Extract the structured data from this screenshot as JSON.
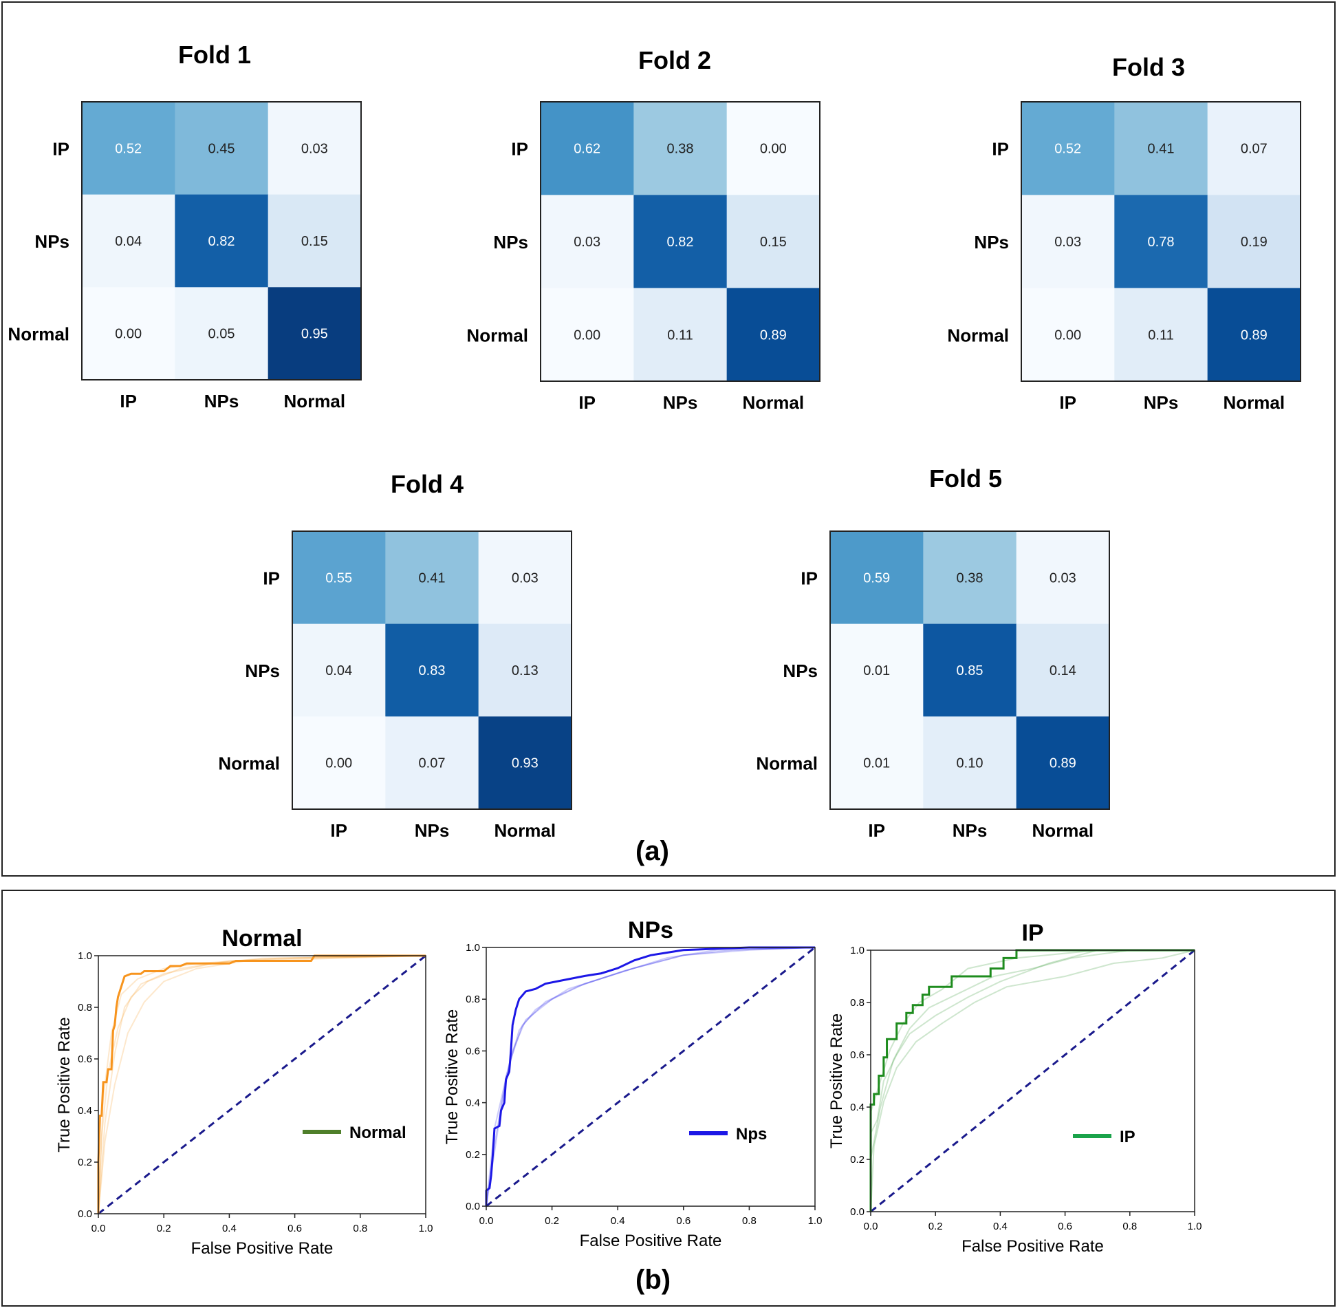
{
  "panel_a": {
    "label": "(a)"
  },
  "panel_b": {
    "label": "(b)"
  },
  "colors": {
    "orange": "#f7941d",
    "blue": "#1c17e6",
    "green": "#1e8c1e",
    "diag": "#1a1a8c",
    "legend_normal": "#4f7f2a",
    "legend_nps": "#1c17e6",
    "legend_ip": "#1aa34a"
  },
  "chart_data": [
    {
      "type": "heatmap",
      "title": "Fold 1",
      "rows": [
        "IP",
        "NPs",
        "Normal"
      ],
      "cols": [
        "IP",
        "NPs",
        "Normal"
      ],
      "values": [
        [
          0.52,
          0.45,
          0.03
        ],
        [
          0.04,
          0.82,
          0.15
        ],
        [
          0.0,
          0.05,
          0.95
        ]
      ],
      "labels": [
        [
          "0.52",
          "0.45",
          "0.03"
        ],
        [
          "0.04",
          "0.82",
          "0.15"
        ],
        [
          "0.00",
          "0.05",
          "0.95"
        ]
      ]
    },
    {
      "type": "heatmap",
      "title": "Fold 2",
      "rows": [
        "IP",
        "NPs",
        "Normal"
      ],
      "cols": [
        "IP",
        "NPs",
        "Normal"
      ],
      "values": [
        [
          0.62,
          0.38,
          0.0
        ],
        [
          0.03,
          0.82,
          0.15
        ],
        [
          0.0,
          0.11,
          0.89
        ]
      ],
      "labels": [
        [
          "0.62",
          "0.38",
          "0.00"
        ],
        [
          "0.03",
          "0.82",
          "0.15"
        ],
        [
          "0.00",
          "0.11",
          "0.89"
        ]
      ]
    },
    {
      "type": "heatmap",
      "title": "Fold 3",
      "rows": [
        "IP",
        "NPs",
        "Normal"
      ],
      "cols": [
        "IP",
        "NPs",
        "Normal"
      ],
      "values": [
        [
          0.52,
          0.41,
          0.07
        ],
        [
          0.03,
          0.78,
          0.19
        ],
        [
          0.0,
          0.11,
          0.89
        ]
      ],
      "labels": [
        [
          "0.52",
          "0.41",
          "0.07"
        ],
        [
          "0.03",
          "0.78",
          "0.19"
        ],
        [
          "0.00",
          "0.11",
          "0.89"
        ]
      ]
    },
    {
      "type": "heatmap",
      "title": "Fold 4",
      "rows": [
        "IP",
        "NPs",
        "Normal"
      ],
      "cols": [
        "IP",
        "NPs",
        "Normal"
      ],
      "values": [
        [
          0.55,
          0.41,
          0.03
        ],
        [
          0.04,
          0.83,
          0.13
        ],
        [
          0.0,
          0.07,
          0.93
        ]
      ],
      "labels": [
        [
          "0.55",
          "0.41",
          "0.03"
        ],
        [
          "0.04",
          "0.83",
          "0.13"
        ],
        [
          "0.00",
          "0.07",
          "0.93"
        ]
      ]
    },
    {
      "type": "heatmap",
      "title": "Fold 5",
      "rows": [
        "IP",
        "NPs",
        "Normal"
      ],
      "cols": [
        "IP",
        "NPs",
        "Normal"
      ],
      "values": [
        [
          0.59,
          0.38,
          0.03
        ],
        [
          0.01,
          0.85,
          0.14
        ],
        [
          0.01,
          0.1,
          0.89
        ]
      ],
      "labels": [
        [
          "0.59",
          "0.38",
          "0.03"
        ],
        [
          "0.01",
          "0.85",
          "0.14"
        ],
        [
          "0.01",
          "0.10",
          "0.89"
        ]
      ]
    },
    {
      "type": "line",
      "title": "Normal",
      "xlabel": "False Positive Rate",
      "ylabel": "True Positive Rate",
      "xlim": [
        0,
        1
      ],
      "ylim": [
        0,
        1
      ],
      "ticks": [
        "0.0",
        "0.2",
        "0.4",
        "0.6",
        "0.8",
        "1.0"
      ],
      "legend": "Normal",
      "color_key": "orange",
      "legend_color_key": "legend_normal",
      "main": [
        [
          0,
          0
        ],
        [
          0,
          0.2
        ],
        [
          0.005,
          0.38
        ],
        [
          0.01,
          0.38
        ],
        [
          0.015,
          0.51
        ],
        [
          0.025,
          0.51
        ],
        [
          0.03,
          0.56
        ],
        [
          0.04,
          0.56
        ],
        [
          0.045,
          0.71
        ],
        [
          0.05,
          0.73
        ],
        [
          0.055,
          0.8
        ],
        [
          0.06,
          0.84
        ],
        [
          0.065,
          0.86
        ],
        [
          0.07,
          0.88
        ],
        [
          0.075,
          0.9
        ],
        [
          0.08,
          0.92
        ],
        [
          0.1,
          0.93
        ],
        [
          0.13,
          0.93
        ],
        [
          0.14,
          0.94
        ],
        [
          0.2,
          0.94
        ],
        [
          0.22,
          0.96
        ],
        [
          0.25,
          0.96
        ],
        [
          0.27,
          0.97
        ],
        [
          0.4,
          0.97
        ],
        [
          0.42,
          0.98
        ],
        [
          0.65,
          0.98
        ],
        [
          0.66,
          1.0
        ],
        [
          1,
          1
        ]
      ],
      "folds": [
        [
          [
            0,
            0
          ],
          [
            0.01,
            0.3
          ],
          [
            0.03,
            0.55
          ],
          [
            0.06,
            0.72
          ],
          [
            0.1,
            0.84
          ],
          [
            0.15,
            0.9
          ],
          [
            0.25,
            0.95
          ],
          [
            0.4,
            0.98
          ],
          [
            0.6,
            0.99
          ],
          [
            1,
            1
          ]
        ],
        [
          [
            0,
            0
          ],
          [
            0.02,
            0.35
          ],
          [
            0.05,
            0.62
          ],
          [
            0.08,
            0.8
          ],
          [
            0.13,
            0.89
          ],
          [
            0.2,
            0.93
          ],
          [
            0.35,
            0.97
          ],
          [
            0.5,
            0.99
          ],
          [
            1,
            1
          ]
        ],
        [
          [
            0,
            0
          ],
          [
            0.015,
            0.45
          ],
          [
            0.04,
            0.7
          ],
          [
            0.07,
            0.85
          ],
          [
            0.12,
            0.91
          ],
          [
            0.2,
            0.95
          ],
          [
            0.3,
            0.97
          ],
          [
            0.55,
            0.99
          ],
          [
            1,
            1
          ]
        ],
        [
          [
            0,
            0
          ],
          [
            0.02,
            0.28
          ],
          [
            0.05,
            0.5
          ],
          [
            0.09,
            0.7
          ],
          [
            0.14,
            0.82
          ],
          [
            0.2,
            0.9
          ],
          [
            0.3,
            0.95
          ],
          [
            0.45,
            0.98
          ],
          [
            1,
            1
          ]
        ]
      ]
    },
    {
      "type": "line",
      "title": "NPs",
      "xlabel": "False Positive Rate",
      "ylabel": "True Positive Rate",
      "xlim": [
        0,
        1
      ],
      "ylim": [
        0,
        1
      ],
      "ticks": [
        "0.0",
        "0.2",
        "0.4",
        "0.6",
        "0.8",
        "1.0"
      ],
      "legend": "Nps",
      "color_key": "blue",
      "legend_color_key": "legend_nps",
      "main": [
        [
          0,
          0
        ],
        [
          0,
          0.06
        ],
        [
          0.01,
          0.07
        ],
        [
          0.015,
          0.12
        ],
        [
          0.02,
          0.2
        ],
        [
          0.025,
          0.3
        ],
        [
          0.04,
          0.31
        ],
        [
          0.045,
          0.37
        ],
        [
          0.055,
          0.4
        ],
        [
          0.06,
          0.49
        ],
        [
          0.07,
          0.52
        ],
        [
          0.075,
          0.6
        ],
        [
          0.08,
          0.7
        ],
        [
          0.09,
          0.76
        ],
        [
          0.1,
          0.8
        ],
        [
          0.12,
          0.83
        ],
        [
          0.15,
          0.84
        ],
        [
          0.18,
          0.86
        ],
        [
          0.22,
          0.87
        ],
        [
          0.26,
          0.88
        ],
        [
          0.3,
          0.89
        ],
        [
          0.35,
          0.9
        ],
        [
          0.4,
          0.92
        ],
        [
          0.45,
          0.95
        ],
        [
          0.5,
          0.97
        ],
        [
          0.55,
          0.98
        ],
        [
          0.6,
          0.99
        ],
        [
          0.7,
          0.995
        ],
        [
          0.8,
          1.0
        ],
        [
          1,
          1
        ]
      ],
      "folds": [
        [
          [
            0,
            0
          ],
          [
            0.02,
            0.2
          ],
          [
            0.05,
            0.42
          ],
          [
            0.08,
            0.6
          ],
          [
            0.12,
            0.72
          ],
          [
            0.2,
            0.8
          ],
          [
            0.3,
            0.86
          ],
          [
            0.45,
            0.92
          ],
          [
            0.6,
            0.97
          ],
          [
            0.75,
            0.99
          ],
          [
            1,
            1
          ]
        ],
        [
          [
            0,
            0
          ],
          [
            0.03,
            0.25
          ],
          [
            0.06,
            0.5
          ],
          [
            0.1,
            0.68
          ],
          [
            0.15,
            0.76
          ],
          [
            0.25,
            0.84
          ],
          [
            0.4,
            0.9
          ],
          [
            0.55,
            0.96
          ],
          [
            0.7,
            0.99
          ],
          [
            1,
            1
          ]
        ],
        [
          [
            0,
            0
          ],
          [
            0.025,
            0.3
          ],
          [
            0.07,
            0.55
          ],
          [
            0.11,
            0.7
          ],
          [
            0.18,
            0.79
          ],
          [
            0.28,
            0.85
          ],
          [
            0.42,
            0.91
          ],
          [
            0.6,
            0.97
          ],
          [
            0.8,
            0.99
          ],
          [
            1,
            1
          ]
        ]
      ]
    },
    {
      "type": "line",
      "title": "IP",
      "xlabel": "False Positive Rate",
      "ylabel": "True Positive Rate",
      "xlim": [
        0,
        1
      ],
      "ylim": [
        0,
        1
      ],
      "ticks": [
        "0.0",
        "0.2",
        "0.4",
        "0.6",
        "0.8",
        "1.0"
      ],
      "legend": "IP",
      "color_key": "green",
      "legend_color_key": "legend_ip",
      "main": [
        [
          0,
          0
        ],
        [
          0,
          0.41
        ],
        [
          0.01,
          0.41
        ],
        [
          0.01,
          0.45
        ],
        [
          0.025,
          0.45
        ],
        [
          0.025,
          0.52
        ],
        [
          0.04,
          0.52
        ],
        [
          0.04,
          0.59
        ],
        [
          0.05,
          0.59
        ],
        [
          0.05,
          0.66
        ],
        [
          0.08,
          0.66
        ],
        [
          0.08,
          0.72
        ],
        [
          0.11,
          0.72
        ],
        [
          0.11,
          0.76
        ],
        [
          0.13,
          0.76
        ],
        [
          0.13,
          0.79
        ],
        [
          0.16,
          0.79
        ],
        [
          0.16,
          0.83
        ],
        [
          0.18,
          0.83
        ],
        [
          0.18,
          0.86
        ],
        [
          0.25,
          0.86
        ],
        [
          0.25,
          0.9
        ],
        [
          0.37,
          0.9
        ],
        [
          0.37,
          0.93
        ],
        [
          0.41,
          0.93
        ],
        [
          0.41,
          0.97
        ],
        [
          0.45,
          0.97
        ],
        [
          0.45,
          1.0
        ],
        [
          1,
          1
        ]
      ],
      "folds": [
        [
          [
            0,
            0
          ],
          [
            0,
            0.3
          ],
          [
            0.02,
            0.35
          ],
          [
            0.04,
            0.5
          ],
          [
            0.08,
            0.6
          ],
          [
            0.12,
            0.68
          ],
          [
            0.2,
            0.75
          ],
          [
            0.3,
            0.82
          ],
          [
            0.4,
            0.88
          ],
          [
            0.55,
            0.95
          ],
          [
            0.7,
            1.0
          ],
          [
            1,
            1
          ]
        ],
        [
          [
            0,
            0
          ],
          [
            0,
            0.38
          ],
          [
            0.03,
            0.5
          ],
          [
            0.06,
            0.62
          ],
          [
            0.1,
            0.72
          ],
          [
            0.15,
            0.8
          ],
          [
            0.22,
            0.85
          ],
          [
            0.3,
            0.93
          ],
          [
            0.45,
            0.97
          ],
          [
            0.7,
            1.0
          ],
          [
            1,
            1
          ]
        ],
        [
          [
            0,
            0
          ],
          [
            0.01,
            0.25
          ],
          [
            0.04,
            0.42
          ],
          [
            0.08,
            0.55
          ],
          [
            0.14,
            0.65
          ],
          [
            0.22,
            0.72
          ],
          [
            0.32,
            0.8
          ],
          [
            0.42,
            0.86
          ],
          [
            0.6,
            0.9
          ],
          [
            0.75,
            0.95
          ],
          [
            0.9,
            0.97
          ],
          [
            1,
            1
          ]
        ],
        [
          [
            0,
            0
          ],
          [
            0,
            0.2
          ],
          [
            0.03,
            0.4
          ],
          [
            0.07,
            0.58
          ],
          [
            0.12,
            0.7
          ],
          [
            0.18,
            0.78
          ],
          [
            0.28,
            0.84
          ],
          [
            0.38,
            0.9
          ],
          [
            0.5,
            0.93
          ],
          [
            0.62,
            0.97
          ],
          [
            0.8,
            1.0
          ],
          [
            1,
            1
          ]
        ]
      ]
    }
  ]
}
